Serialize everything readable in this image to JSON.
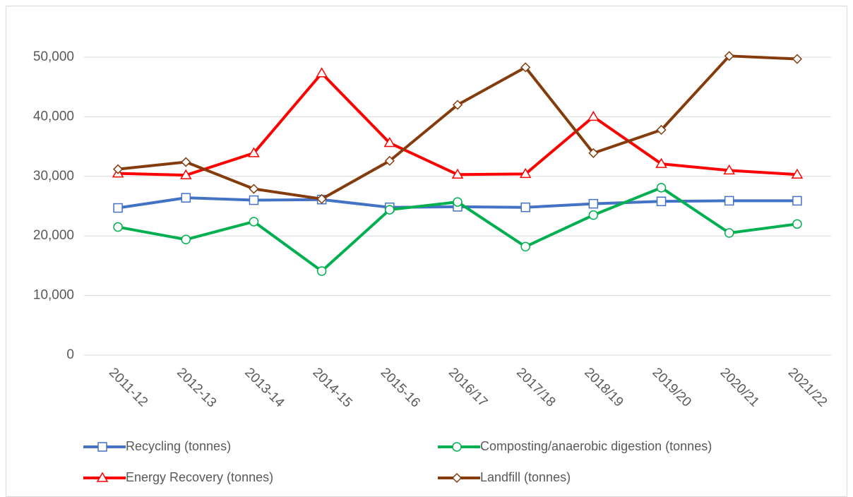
{
  "chart_data": {
    "type": "line",
    "categories": [
      "2011-12",
      "2012-13",
      "2013-14",
      "2014-15",
      "2015-16",
      "2016/17",
      "2017/18",
      "2018/19",
      "2019/20",
      "2020/21",
      "2021/22"
    ],
    "series": [
      {
        "name": "Recycling (tonnes)",
        "color": "#4472c4",
        "marker": "square",
        "values": [
          24700,
          26400,
          26000,
          26100,
          24800,
          24900,
          24800,
          25400,
          25800,
          25900,
          25900
        ]
      },
      {
        "name": "Composting/anaerobic digestion (tonnes)",
        "color": "#00b050",
        "marker": "circle",
        "values": [
          21500,
          19400,
          22400,
          14100,
          24400,
          25700,
          18200,
          23500,
          28100,
          20500,
          22000
        ]
      },
      {
        "name": "Energy Recovery (tonnes)",
        "color": "#ff0000",
        "marker": "triangle",
        "values": [
          30500,
          30200,
          33900,
          47300,
          35600,
          30300,
          30400,
          40000,
          32100,
          31000,
          30300
        ]
      },
      {
        "name": "Landfill (tonnes)",
        "color": "#843c0c",
        "marker": "diamond",
        "values": [
          31200,
          32400,
          27900,
          26200,
          32600,
          42000,
          48300,
          33900,
          37800,
          50200,
          49700
        ]
      }
    ],
    "ylim": [
      0,
      50000
    ],
    "yticks": [
      {
        "value": 0,
        "label": "0"
      },
      {
        "value": 10000,
        "label": "10,000"
      },
      {
        "value": 20000,
        "label": "20,000"
      },
      {
        "value": 30000,
        "label": "30,000"
      },
      {
        "value": 40000,
        "label": "40,000"
      },
      {
        "value": 50000,
        "label": "50,000"
      }
    ],
    "grid": true,
    "legend": "bottom"
  }
}
